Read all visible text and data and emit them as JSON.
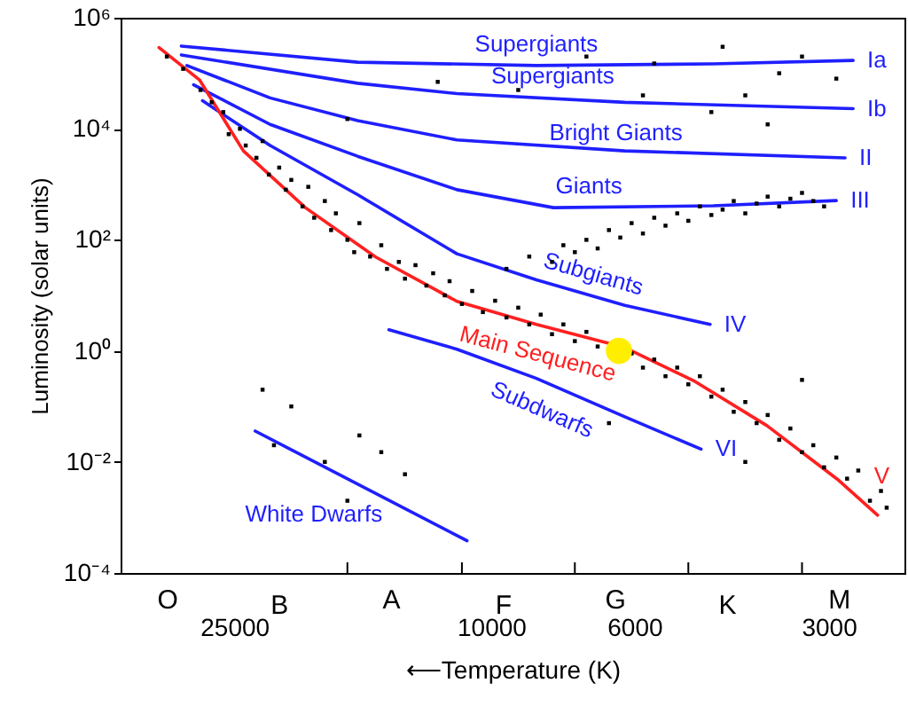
{
  "chart_data": {
    "type": "scatter",
    "ylabel": "Luminosity (solar units)",
    "xlabel": "⟵Temperature (K)",
    "log": "xy",
    "grid": false,
    "xlim": [
      37500,
      2290
    ],
    "ylim": [
      0.0001,
      1000000
    ],
    "xticks": [
      25000,
      10000,
      6000,
      3000,
      {
        "value": 16700,
        "label": null
      },
      {
        "value": 11100,
        "label": null
      },
      {
        "value": 7420,
        "label": null
      },
      {
        "value": 4950,
        "label": null
      },
      {
        "value": 3300,
        "label": null
      }
    ],
    "yticks": [
      {
        "value": 0.0001,
        "label": "10⁻⁴"
      },
      {
        "value": 0.01,
        "label": "10⁻²"
      },
      {
        "value": 1,
        "label": "10⁰"
      },
      {
        "value": 100,
        "label": "10²"
      },
      {
        "value": 10000,
        "label": "10⁴"
      },
      {
        "value": 1000000,
        "label": "10⁶"
      }
    ],
    "series": [
      {
        "name": "Supergiants",
        "type": "line",
        "color": "#1f1fff",
        "x": [
          30200,
          16100,
          8510,
          4530,
          2750
        ],
        "values": [
          309000,
          158000,
          138000,
          148000,
          170000
        ]
      },
      {
        "name": "Supergiants",
        "type": "line",
        "color": "#1f1fff",
        "x": [
          30200,
          16100,
          11300,
          6210,
          2750
        ],
        "values": [
          214000,
          66000,
          43000,
          30000,
          23000
        ]
      },
      {
        "name": "Bright Giants",
        "type": "line",
        "color": "#1f1fff",
        "x": [
          29600,
          22000,
          16100,
          11300,
          6210,
          2830
        ],
        "values": [
          138000,
          36000,
          14000,
          6300,
          4000,
          3000
        ]
      },
      {
        "name": "Giants",
        "type": "line",
        "color": "#1f1fff",
        "x": [
          28900,
          22000,
          16100,
          11300,
          8010,
          4530,
          2920
        ],
        "values": [
          62000,
          12000,
          3200,
          800,
          380,
          410,
          510
        ]
      },
      {
        "name": "Subgiants",
        "type": "line",
        "color": "#1f1fff",
        "x": [
          28000,
          22000,
          16100,
          11300,
          8510,
          6210,
          4580
        ],
        "values": [
          32000,
          5000,
          650,
          56,
          19,
          6.6,
          3
        ]
      },
      {
        "name": "Main Sequence",
        "type": "line",
        "color": "#ff2020",
        "x": [
          32700,
          28300,
          24200,
          19400,
          15100,
          11300,
          8510,
          6210,
          4830,
          3740,
          2910,
          2520
        ],
        "values": [
          290000,
          76000,
          4000,
          380,
          49,
          7.8,
          3,
          1.15,
          0.28,
          0.045,
          0.0049,
          0.0011
        ]
      },
      {
        "name": "Subdwarfs",
        "type": "line",
        "color": "#1f1fff",
        "x": [
          14400,
          11300,
          8510,
          6210,
          4730
        ],
        "values": [
          2.4,
          1.07,
          0.32,
          0.065,
          0.017
        ]
      },
      {
        "name": "White Dwarfs",
        "type": "line",
        "color": "#1f1fff",
        "x": [
          23200,
          10900
        ],
        "values": [
          0.036,
          0.00038
        ]
      },
      {
        "marker": "square",
        "color": "#000000",
        "x": [
          31800,
          30000,
          28200,
          27100,
          26000,
          25500,
          24500,
          24000,
          23100,
          22600,
          22100,
          21300,
          20800,
          20400,
          19600,
          19200,
          18800,
          18100,
          17700,
          17400,
          16700,
          16300,
          16000,
          15400,
          14800,
          14500,
          13900,
          13600,
          13100,
          12600,
          12300,
          11800,
          11600,
          11100,
          10700,
          10300,
          9860,
          9470,
          9080,
          8730,
          8380,
          8050,
          7730,
          7420,
          7120,
          6840,
          6570,
          6060,
          5820,
          5590,
          5370,
          5150,
          4950,
          4750,
          4560,
          4380,
          4210,
          4040,
          3880,
          3730,
          3580,
          3440,
          3300,
          3170,
          3050,
          2920,
          2810,
          2700,
          2590,
          2490,
          2440,
          9470,
          8730,
          8050,
          7730,
          7420,
          7120,
          6840,
          6570,
          6310,
          6060,
          5820,
          5590,
          5370,
          5150,
          4950,
          4750,
          4560,
          4380,
          4210,
          4040,
          3880,
          3730,
          3580,
          3440,
          3300,
          3170,
          3050,
          12100,
          9080,
          7120,
          5590,
          4380,
          4040,
          3580,
          3300,
          2920,
          5820,
          4560,
          3730,
          16700,
          21700,
          18100,
          16700,
          13600,
          14800,
          20400,
          22600,
          16000,
          6570,
          4040,
          3300
        ],
        "values": [
          200000,
          120000,
          50000,
          30000,
          20000,
          8000,
          10000,
          5000,
          3000,
          6000,
          1500,
          2000,
          800,
          1200,
          400,
          900,
          250,
          500,
          150,
          300,
          100,
          60,
          200,
          50,
          80,
          30,
          40,
          20,
          35,
          15,
          25,
          10,
          18,
          7,
          12,
          5,
          8,
          4,
          6,
          3,
          4.5,
          2,
          3,
          1.5,
          2.2,
          1.2,
          null,
          0.9,
          0.5,
          0.7,
          0.35,
          0.5,
          0.25,
          0.35,
          0.15,
          0.2,
          0.08,
          0.12,
          0.05,
          0.07,
          0.025,
          0.04,
          0.015,
          0.02,
          0.008,
          0.012,
          0.005,
          0.007,
          0.002,
          0.003,
          0.0015,
          30,
          50,
          40,
          80,
          60,
          100,
          70,
          150,
          110,
          200,
          130,
          250,
          180,
          300,
          220,
          400,
          280,
          350,
          500,
          300,
          450,
          600,
          400,
          550,
          700,
          500,
          400,
          70000,
          50000,
          200000,
          150000,
          300000,
          40000,
          100000,
          200000,
          80000,
          40000,
          20000,
          12000,
          15000,
          0.02,
          0.01,
          0.002,
          0.006,
          0.015,
          0.1,
          0.2,
          0.03,
          0.05,
          0.01,
          0.3
        ]
      },
      {
        "marker": "circle",
        "color": "#ffee00",
        "x": [
          6340
        ],
        "values": [
          1
        ]
      }
    ],
    "annotations": [
      {
        "text": "Ia",
        "x": 2750,
        "y": 170000
      },
      {
        "text": "Ib",
        "x": 2750,
        "y": 23000
      },
      {
        "text": "II",
        "x": 2830,
        "y": 3000
      },
      {
        "text": "III",
        "x": 2920,
        "y": 510
      },
      {
        "text": "IV",
        "x": 4580,
        "y": 3
      },
      {
        "text": "V",
        "x": 2520,
        "y": 0.0011
      },
      {
        "text": "VI",
        "x": 4730,
        "y": 0.017
      },
      "O",
      "B",
      "A",
      "F",
      "G",
      "K",
      "M"
    ]
  }
}
